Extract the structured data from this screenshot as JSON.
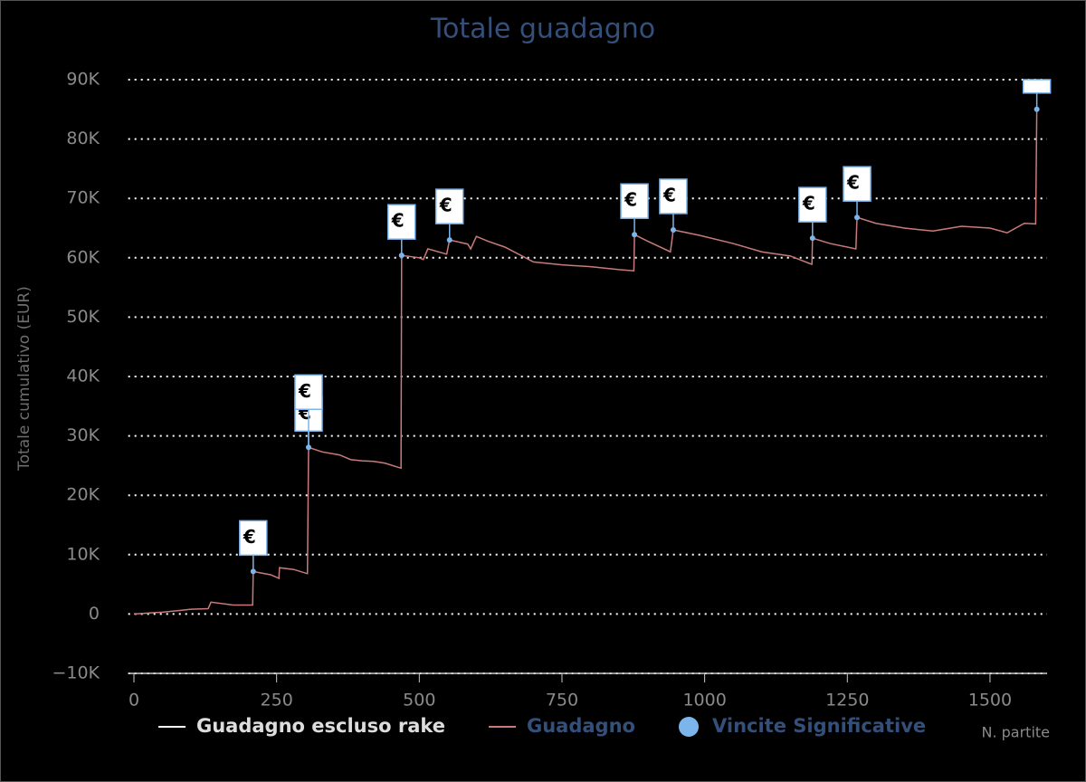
{
  "chart_data": {
    "type": "line",
    "title": "Totale guadagno",
    "x_label": "N. partite",
    "y_label": "Totale cumulativo (EUR)",
    "xlim": [
      -10,
      1600
    ],
    "xticks": [
      0,
      250,
      500,
      750,
      1000,
      1250,
      1500
    ],
    "ylim": [
      -10000,
      90000
    ],
    "yticks": [
      {
        "value": -10000,
        "label": "−10K"
      },
      0,
      {
        "value": 10000,
        "label": "10K"
      },
      {
        "value": 20000,
        "label": "20K"
      },
      {
        "value": 30000,
        "label": "30K"
      },
      {
        "value": 40000,
        "label": "40K"
      },
      {
        "value": 50000,
        "label": "50K"
      },
      {
        "value": 60000,
        "label": "60K"
      },
      {
        "value": 70000,
        "label": "70K"
      },
      {
        "value": 80000,
        "label": "80K"
      },
      {
        "value": 90000,
        "label": "90K"
      }
    ],
    "grid": true,
    "series": [
      {
        "name": "Guadagno escluso rake",
        "color": "#ffffff",
        "visible": false
      },
      {
        "name": "Guadagno",
        "color": "#c97b7b",
        "x": [
          0,
          30,
          50,
          80,
          100,
          130,
          135,
          175,
          200,
          208,
          209,
          240,
          254,
          255,
          280,
          304,
          306,
          330,
          360,
          380,
          400,
          420,
          440,
          468,
          469,
          500,
          507,
          515,
          548,
          553,
          585,
          590,
          600,
          620,
          650,
          700,
          750,
          800,
          850,
          876,
          877,
          900,
          940,
          945,
          990,
          1050,
          1100,
          1150,
          1185,
          1188,
          1189,
          1220,
          1265,
          1267,
          1300,
          1350,
          1400,
          1450,
          1500,
          1530,
          1560,
          1580,
          1582
        ],
        "values": [
          0,
          200,
          300,
          600,
          800,
          900,
          2000,
          1500,
          1500,
          1500,
          7170,
          6600,
          6000,
          7800,
          7500,
          6800,
          28070,
          27300,
          26800,
          26000,
          25800,
          25700,
          25400,
          24560,
          60400,
          60000,
          59700,
          61500,
          60600,
          63000,
          62300,
          61500,
          63600,
          62800,
          61800,
          59300,
          58800,
          58500,
          58000,
          57800,
          63900,
          62800,
          61000,
          64700,
          63800,
          62400,
          61000,
          60300,
          59000,
          58900,
          63300,
          62400,
          61500,
          66800,
          65800,
          65000,
          64500,
          65300,
          65000,
          64200,
          65800,
          65700,
          85000
        ]
      },
      {
        "name": "Vincite Significative",
        "type": "scatter",
        "color": "#7cb5ec",
        "x": [
          209,
          306,
          469,
          553,
          877,
          945,
          1189,
          1267,
          1582
        ],
        "values": [
          7170,
          28070,
          60400,
          63000,
          63900,
          64700,
          63300,
          66800,
          85000
        ]
      }
    ],
    "flags": [
      {
        "x": 209,
        "title": "€"
      },
      {
        "x": 306,
        "title": "€"
      },
      {
        "x": 306,
        "title": "€"
      },
      {
        "x": 469,
        "title": "€"
      },
      {
        "x": 553,
        "title": "€"
      },
      {
        "x": 877,
        "title": "€"
      },
      {
        "x": 945,
        "title": "€"
      },
      {
        "x": 1189,
        "title": "€"
      },
      {
        "x": 1267,
        "title": "€"
      },
      {
        "x": 1582
      }
    ]
  }
}
